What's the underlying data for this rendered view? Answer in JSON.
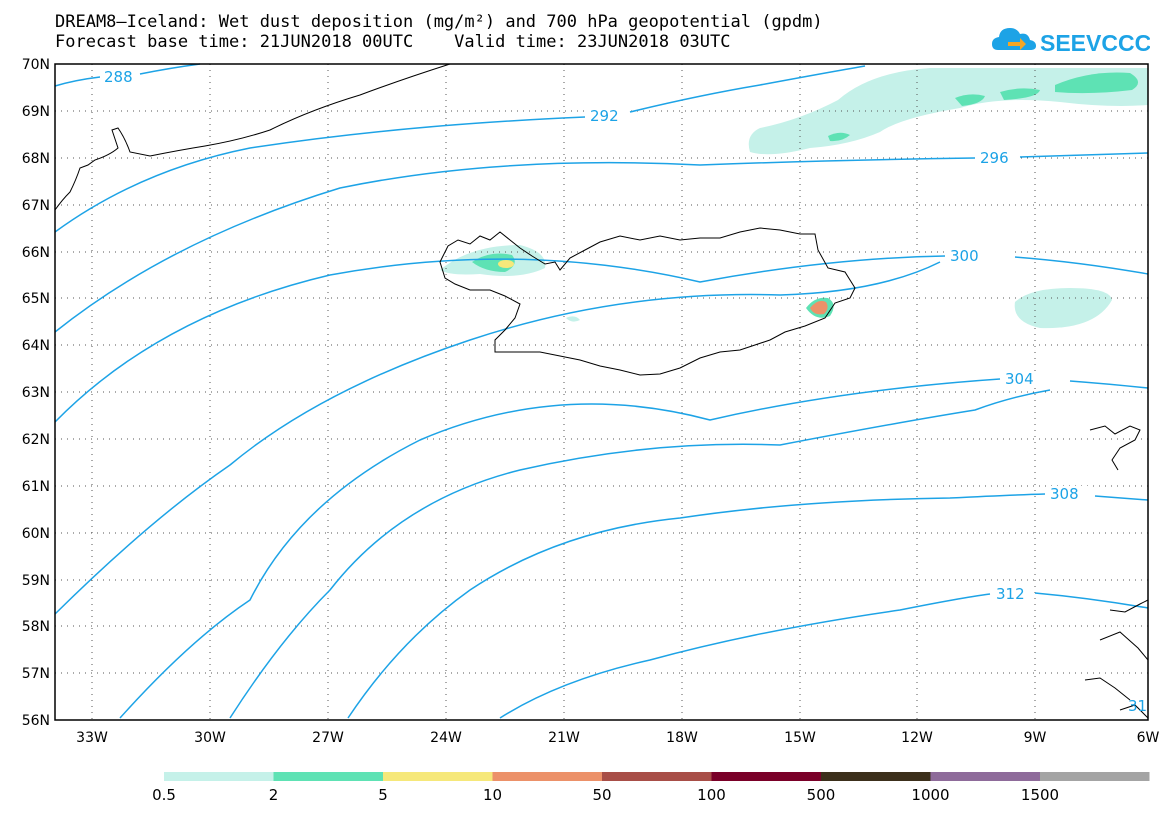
{
  "title_line1": "DREAM8–Iceland: Wet dust deposition (mg/m²) and 700 hPa geopotential (gpdm)",
  "title_line2": "Forecast base time: 21JUN2018 00UTC    Valid time: 23JUN2018 03UTC",
  "logo_text": "SEEVCCC",
  "colors": {
    "contour": "#1da3e6",
    "coast": "#000000",
    "logo": "#1da3e6",
    "logo_accent": "#f5a623"
  },
  "lat_labels": [
    "70N",
    "69N",
    "68N",
    "67N",
    "66N",
    "65N",
    "64N",
    "63N",
    "62N",
    "61N",
    "60N",
    "59N",
    "58N",
    "57N",
    "56N"
  ],
  "lon_labels": [
    "33W",
    "30W",
    "27W",
    "24W",
    "21W",
    "18W",
    "15W",
    "12W",
    "9W",
    "6W"
  ],
  "contour_labels": [
    "288",
    "292",
    "296",
    "300",
    "304",
    "308",
    "312",
    "31"
  ],
  "legend": {
    "colors": [
      "#c5f1e9",
      "#5ee2b4",
      "#f6e87a",
      "#ec9169",
      "#a84e47",
      "#7a0028",
      "#3c2f1b",
      "#8e6b9a",
      "#a4a4a4"
    ],
    "labels": [
      "0.5",
      "2",
      "5",
      "10",
      "50",
      "100",
      "500",
      "1000",
      "1500"
    ]
  }
}
